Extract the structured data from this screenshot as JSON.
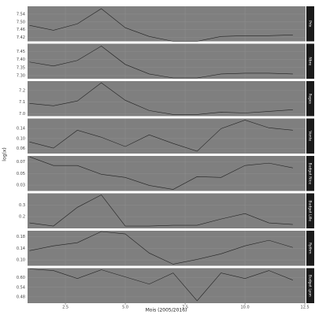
{
  "chart_data": {
    "type": "line",
    "x_label": "Mois (2005/2016)",
    "y_label": "log(x)",
    "x": [
      1,
      2,
      3,
      4,
      5,
      6,
      7,
      8,
      9,
      10,
      11,
      12
    ],
    "xlim": [
      0.92,
      12.53
    ],
    "xticks": [
      2.5,
      {
        "value": 5,
        "label": "5.0"
      },
      7.5,
      {
        "value": 10,
        "label": "10.0"
      },
      12.5
    ],
    "panel_color": "#7f7f7f",
    "line_color": "#222222",
    "grid": true,
    "panels": [
      {
        "label": "Prix",
        "values": [
          7.482,
          7.457,
          7.49,
          7.568,
          7.47,
          7.425,
          7.4,
          7.4,
          7.425,
          7.429,
          7.429,
          7.433
        ],
        "ylim": [
          7.4,
          7.58
        ],
        "yticks": [
          7.42,
          7.46,
          {
            "value": 7.5,
            "label": "7.50"
          },
          7.54
        ]
      },
      {
        "label": "Nbre",
        "values": [
          7.385,
          7.36,
          7.395,
          7.485,
          7.37,
          7.31,
          7.285,
          7.285,
          7.31,
          7.315,
          7.315,
          7.31
        ],
        "ylim": [
          7.28,
          7.5
        ],
        "yticks": [
          {
            "value": 7.3,
            "label": "7.30"
          },
          7.35,
          {
            "value": 7.4,
            "label": "7.40"
          },
          7.45
        ]
      },
      {
        "label": "Pages",
        "values": [
          7.089,
          7.069,
          7.11,
          7.266,
          7.116,
          7.028,
          6.994,
          6.994,
          7.014,
          7.007,
          7.021,
          7.035
        ],
        "ylim": [
          6.98,
          7.28
        ],
        "yticks": [
          {
            "value": 7,
            "label": "7.0"
          },
          7.1,
          7.2
        ]
      },
      {
        "label": "Vente",
        "values": [
          0.0867,
          0.0618,
          0.1333,
          0.1053,
          0.068,
          0.1147,
          0.0804,
          0.0493,
          0.1396,
          0.1738,
          0.1427,
          0.1333
        ],
        "ylim": [
          0.04,
          0.18
        ],
        "yticks": [
          0.06,
          {
            "value": 0.1,
            "label": "0.10"
          },
          0.14
        ]
      },
      {
        "label": "Budget Nice",
        "values": [
          0.0786,
          0.0636,
          0.0636,
          0.0486,
          0.0432,
          0.0295,
          0.0227,
          0.0445,
          0.0432,
          0.0636,
          0.0677,
          0.0595
        ],
        "ylim": [
          0.02,
          0.08
        ],
        "yticks": [
          0.03,
          0.05,
          0.07
        ]
      },
      {
        "label": "Budget Lille",
        "values": [
          0.1467,
          0.12,
          0.28,
          0.3867,
          0.12,
          0.12,
          0.1267,
          0.1267,
          0.18,
          0.2267,
          0.1467,
          0.1333
        ],
        "ylim": [
          0.1,
          0.4
        ],
        "yticks": [
          0.2,
          0.3
        ]
      },
      {
        "label": "Rythm",
        "values": [
          0.1318,
          0.1482,
          0.1591,
          0.1973,
          0.1891,
          0.1236,
          0.0855,
          0.1018,
          0.1209,
          0.1482,
          0.1673,
          0.1427
        ],
        "ylim": [
          0.08,
          0.2
        ],
        "yticks": [
          {
            "value": 0.1,
            "label": "0.10"
          },
          0.14,
          0.18
        ]
      },
      {
        "label": "Budget Lyon",
        "values": [
          0.655,
          0.645,
          0.595,
          0.65,
          0.605,
          0.56,
          0.63,
          0.455,
          0.63,
          0.595,
          0.645,
          0.585
        ],
        "ylim": [
          0.44,
          0.66
        ],
        "yticks": [
          0.48,
          0.54,
          {
            "value": 0.6,
            "label": "0.60"
          }
        ]
      }
    ]
  }
}
